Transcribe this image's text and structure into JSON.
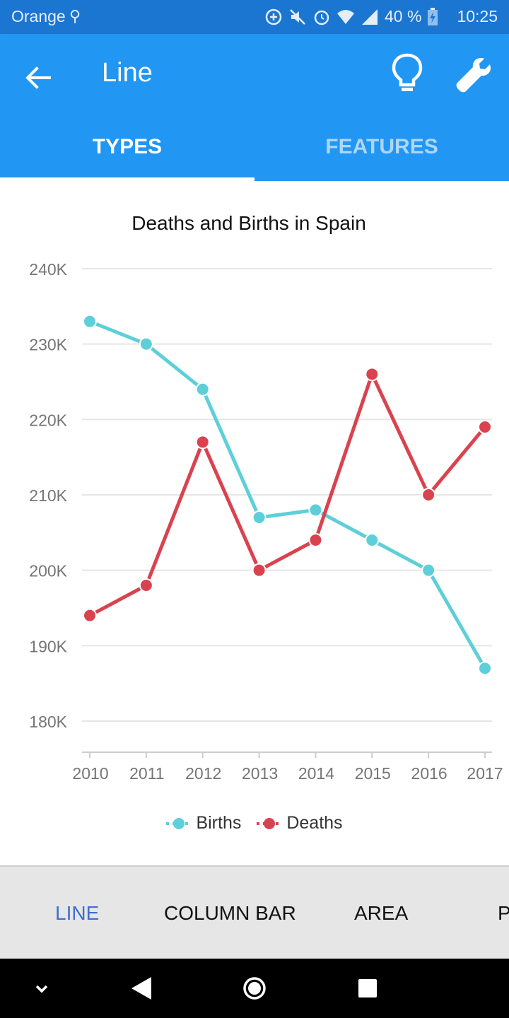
{
  "status_bar": {
    "carrier": "Orange",
    "battery": "40 %",
    "time": "10:25"
  },
  "app_bar": {
    "title": "Line"
  },
  "tabs": [
    {
      "label": "TYPES"
    },
    {
      "label": "FEATURES"
    }
  ],
  "colors": {
    "appbar": "#2196f3",
    "statusbar": "#1b76d2",
    "births": "#5ecfd9",
    "deaths": "#d9434f",
    "nav_active": "#3f6fd1"
  },
  "chart_data": {
    "type": "line",
    "title": "Deaths and Births in Spain",
    "categories": [
      "2010",
      "2011",
      "2012",
      "2013",
      "2014",
      "2015",
      "2016",
      "2017"
    ],
    "series": [
      {
        "name": "Births",
        "values": [
          233000,
          230000,
          224000,
          207000,
          208000,
          204000,
          200000,
          187000
        ]
      },
      {
        "name": "Deaths",
        "values": [
          194000,
          198000,
          217000,
          200000,
          204000,
          226000,
          210000,
          219000
        ]
      }
    ],
    "ylim": [
      180000,
      240000
    ],
    "y_ticks": [
      {
        "value": 240000,
        "label": "240K"
      },
      {
        "value": 230000,
        "label": "230K"
      },
      {
        "value": 220000,
        "label": "220K"
      },
      {
        "value": 210000,
        "label": "210K"
      },
      {
        "value": 200000,
        "label": "200K"
      },
      {
        "value": 190000,
        "label": "190K"
      },
      {
        "value": 180000,
        "label": "180K"
      }
    ],
    "legend": "bottom"
  },
  "bottom_nav": {
    "items": [
      {
        "label": "LINE"
      },
      {
        "label": "COLUMN BAR"
      },
      {
        "label": "AREA"
      },
      {
        "label": "P"
      }
    ]
  }
}
